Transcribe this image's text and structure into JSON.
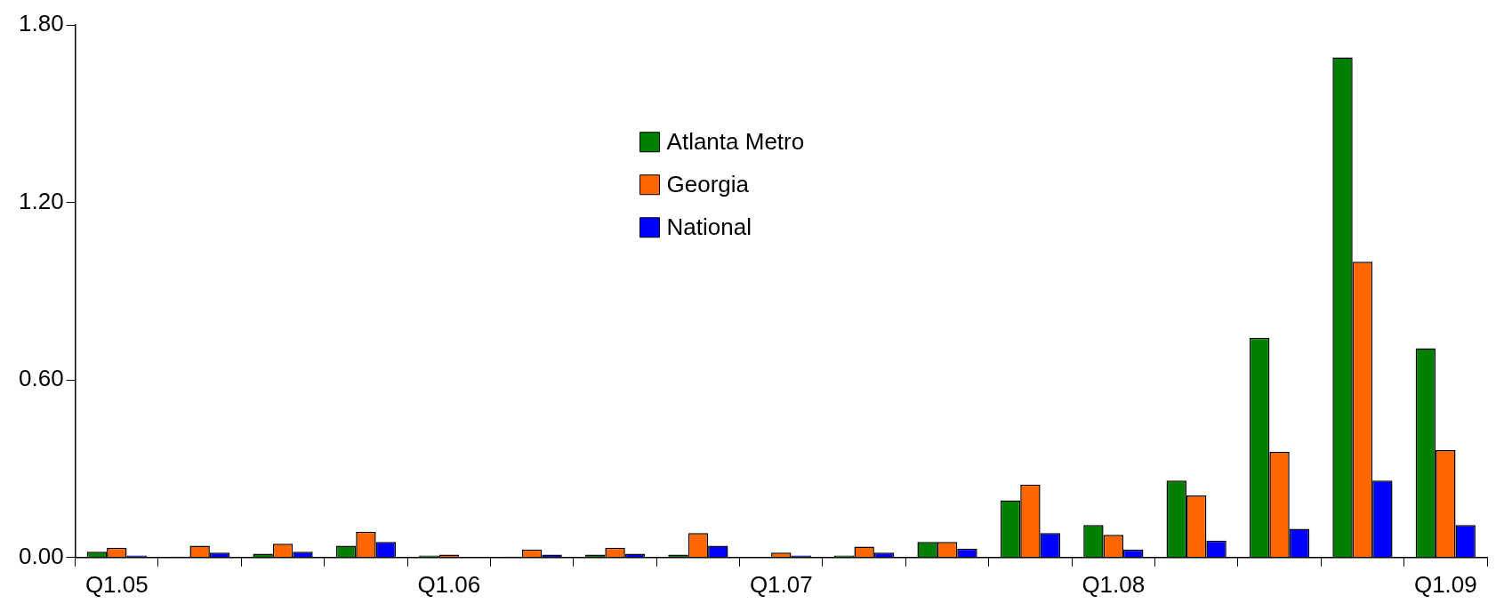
{
  "chart_data": {
    "type": "bar",
    "categories": [
      "Q1.05",
      null,
      null,
      null,
      "Q1.06",
      null,
      null,
      null,
      "Q1.07",
      null,
      null,
      null,
      "Q1.08",
      null,
      null,
      null,
      "Q1.09"
    ],
    "series": [
      {
        "name": "Atlanta Metro",
        "color": "#008000",
        "values": [
          0.02,
          0.003,
          0.013,
          0.04,
          0.007,
          0.003,
          0.01,
          0.01,
          null,
          0.007,
          0.053,
          0.193,
          0.11,
          0.26,
          0.743,
          1.69,
          0.707
        ]
      },
      {
        "name": "Georgia",
        "color": "#ff6600",
        "values": [
          0.033,
          0.04,
          0.047,
          0.087,
          0.01,
          0.027,
          0.033,
          0.083,
          0.017,
          0.037,
          0.053,
          0.247,
          0.077,
          0.21,
          0.357,
          1.0,
          0.363
        ]
      },
      {
        "name": "National",
        "color": "#0000ff",
        "values": [
          0.007,
          0.017,
          0.02,
          0.053,
          null,
          0.01,
          0.013,
          0.04,
          0.007,
          0.017,
          0.03,
          0.083,
          0.027,
          0.057,
          0.097,
          0.26,
          0.11
        ]
      }
    ],
    "ylim": [
      0,
      1.8
    ],
    "yticks": [
      {
        "value": 0,
        "label": "0.00"
      },
      {
        "value": 0.6,
        "label": "0.60"
      },
      {
        "value": 1.2,
        "label": "1.20"
      },
      {
        "value": 1.8,
        "label": "1.80"
      }
    ],
    "grid": false,
    "legend": "top"
  }
}
